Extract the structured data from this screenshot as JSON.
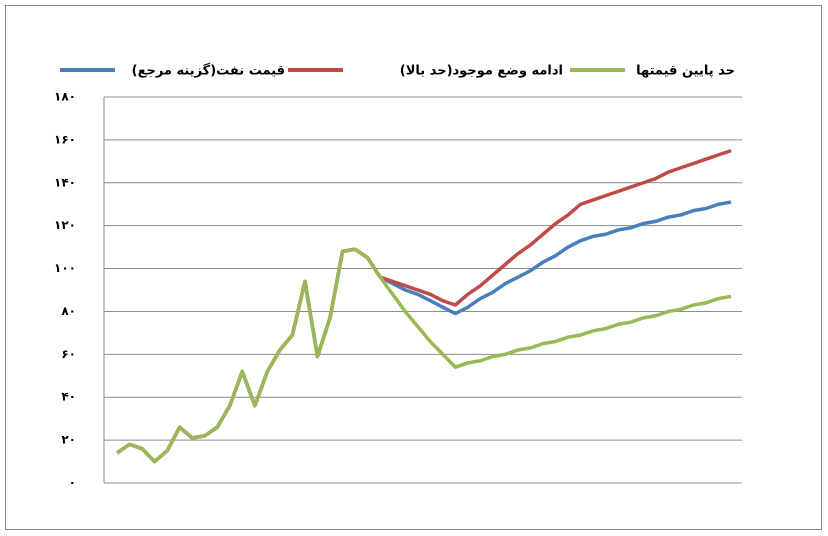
{
  "chart_data": {
    "type": "line",
    "categories": [
      null,
      null,
      null,
      null,
      null,
      null,
      null,
      null,
      null,
      null,
      null,
      null,
      null,
      null,
      null,
      null,
      null,
      null,
      null,
      null,
      null,
      null,
      null,
      null,
      null,
      null,
      null,
      null,
      null,
      null,
      null,
      null,
      null,
      null,
      null,
      null,
      null,
      null,
      null,
      null,
      null,
      null,
      null,
      null,
      null,
      null,
      null,
      null,
      null,
      null
    ],
    "series": [
      {
        "name": "قیمت نفت(گزینه مرجع)",
        "color": "#4a7ebb",
        "values": [
          14,
          18,
          16,
          10,
          15,
          26,
          21,
          22,
          26,
          36,
          52,
          36,
          52,
          62,
          69,
          94,
          59,
          77,
          108,
          109,
          105,
          96,
          93,
          90,
          88,
          85,
          82,
          79,
          82,
          86,
          89,
          93,
          96,
          99,
          103,
          106,
          110,
          113,
          115,
          116,
          118,
          119,
          121,
          122,
          124,
          125,
          127,
          128,
          130,
          131
        ]
      },
      {
        "name": "ادامه وضع موجود(حد بالا)",
        "color": "#be4b48",
        "values": [
          14,
          18,
          16,
          10,
          15,
          26,
          21,
          22,
          26,
          36,
          52,
          36,
          52,
          62,
          69,
          94,
          59,
          77,
          108,
          109,
          105,
          96,
          94,
          92,
          90,
          88,
          85,
          83,
          88,
          92,
          97,
          102,
          107,
          111,
          116,
          121,
          125,
          130,
          132,
          134,
          136,
          138,
          140,
          142,
          145,
          147,
          149,
          151,
          153,
          155
        ]
      },
      {
        "name": "حد پایین قیمتها",
        "color": "#98b954",
        "values": [
          14,
          18,
          16,
          10,
          15,
          26,
          21,
          22,
          26,
          36,
          52,
          36,
          52,
          62,
          69,
          94,
          59,
          77,
          108,
          109,
          105,
          96,
          88,
          80,
          73,
          66,
          60,
          54,
          56,
          57,
          59,
          60,
          62,
          63,
          65,
          66,
          68,
          69,
          71,
          72,
          74,
          75,
          77,
          78,
          80,
          81,
          83,
          84,
          86,
          87
        ]
      }
    ],
    "ylim": [
      0,
      180
    ],
    "yticks": [
      {
        "value": 0,
        "label": "۰"
      },
      {
        "value": 20,
        "label": "۲۰"
      },
      {
        "value": 40,
        "label": "۴۰"
      },
      {
        "value": 60,
        "label": "۶۰"
      },
      {
        "value": 80,
        "label": "۸۰"
      },
      {
        "value": 100,
        "label": "۱۰۰"
      },
      {
        "value": 120,
        "label": "۱۲۰"
      },
      {
        "value": 140,
        "label": "۱۴۰"
      },
      {
        "value": 160,
        "label": "۱۶۰"
      },
      {
        "value": 180,
        "label": "۱۸۰"
      }
    ],
    "grid": true
  }
}
